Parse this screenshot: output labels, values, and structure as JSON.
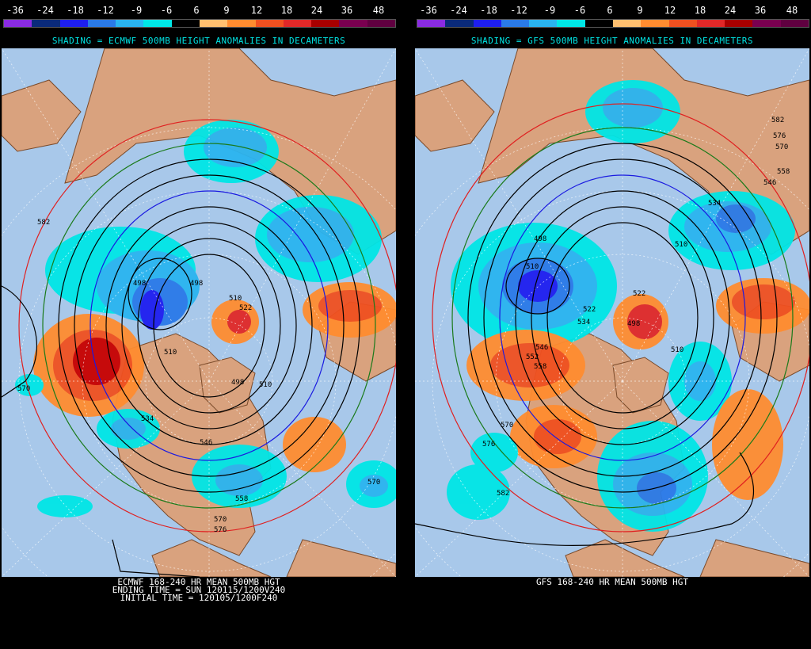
{
  "scale": {
    "labels": [
      "-36",
      "-24",
      "-18",
      "-12",
      "-9",
      "-6",
      "6",
      "9",
      "12",
      "18",
      "24",
      "36",
      "48"
    ],
    "colors": [
      "#8a2be2",
      "#0a2a7a",
      "#1e1ef0",
      "#2a7ae8",
      "#2ab4f0",
      "#00e6e6",
      "#000000",
      "#ffc070",
      "#ff8c30",
      "#f05020",
      "#e02828",
      "#a80000",
      "#7a0050",
      "#600040"
    ]
  },
  "panels": [
    {
      "id": "ecmwf",
      "shading_title": "SHADING = ECMWF 500MB HEIGHT ANOMALIES IN DECAMETERS",
      "footer": [
        "ECMWF 168-240 HR MEAN 500MB HGT",
        "ENDING TIME = SUN 120115/1200V240",
        "INITIAL TIME = 120105/1200F240"
      ],
      "contour_labels": [
        "582",
        "498",
        "498",
        "510",
        "510",
        "522",
        "570",
        "534",
        "498",
        "510",
        "546",
        "558",
        "570",
        "576",
        "570"
      ]
    },
    {
      "id": "gfs",
      "shading_title": "SHADING = GFS 500MB HEIGHT ANOMALIES IN DECAMETERS",
      "footer": [
        "GFS 168-240 HR MEAN 500MB HGT"
      ],
      "contour_labels": [
        "582",
        "576",
        "570",
        "558",
        "546",
        "534",
        "498",
        "510",
        "522",
        "534",
        "522",
        "498",
        "510",
        "546",
        "552",
        "558",
        "570",
        "576",
        "582",
        "510"
      ]
    }
  ],
  "colors": {
    "ocean": "#a8c8ea",
    "land": "#d9a27e",
    "coast": "#7a4a2a",
    "grid": "#ffffff"
  }
}
